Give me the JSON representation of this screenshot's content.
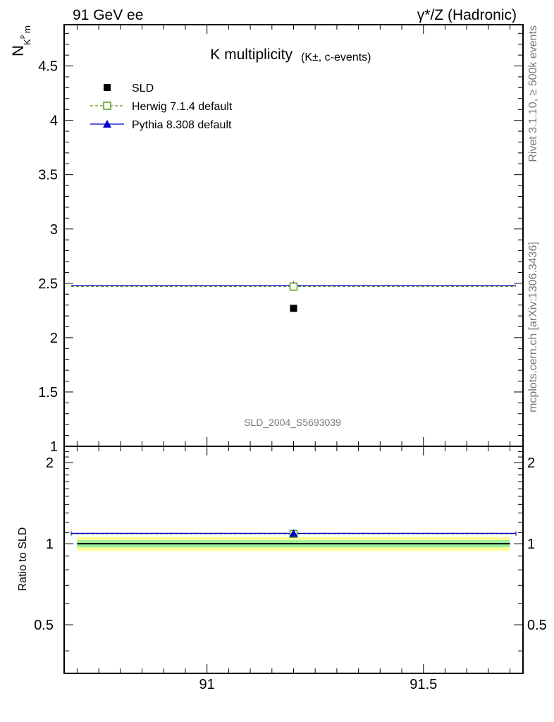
{
  "header": {
    "left": "91 GeV ee",
    "right": "γ*/Z (Hadronic)"
  },
  "side_labels": {
    "rivet": "Rivet 3.1.10, ≥ 500k events",
    "mcplots": "mcplots.cern.ch [arXiv:1306.3436]"
  },
  "chart_data": [
    {
      "type": "scatter",
      "panel": "main",
      "title": "K multiplicity",
      "title_note": "(K±, c-events)",
      "ylabel": "N_{K^{pm}}",
      "watermark": "SLD_2004_S5693039",
      "xlim": [
        90.67,
        91.73
      ],
      "ylim": [
        1.0,
        4.88
      ],
      "yticks": [
        1,
        1.5,
        2,
        2.5,
        3,
        3.5,
        4,
        4.5
      ],
      "ytick_labels": [
        "1",
        "1.5",
        "2",
        "2.5",
        "3",
        "3.5",
        "4",
        "4.5"
      ],
      "legend_position": "top-left",
      "series": [
        {
          "name": "SLD",
          "kind": "data",
          "marker": "square-filled",
          "color": "#000000",
          "x": [
            91.2
          ],
          "y": [
            2.27
          ]
        },
        {
          "name": "Herwig 7.1.4 default",
          "kind": "mc",
          "marker": "square-open",
          "line": "dashed",
          "color": "#5a9a1a",
          "x": [
            91.2
          ],
          "y": [
            2.47
          ],
          "x_range": [
            90.67,
            91.73
          ]
        },
        {
          "name": "Pythia 8.308 default",
          "kind": "mc",
          "marker": "triangle-filled",
          "line": "solid",
          "color": "#0000cc",
          "x": [
            91.2
          ],
          "y": [
            2.48
          ],
          "x_range": [
            90.67,
            91.73
          ]
        }
      ]
    },
    {
      "type": "scatter",
      "panel": "ratio",
      "ylabel": "Ratio to SLD",
      "xlim": [
        90.67,
        91.73
      ],
      "ylim": [
        0.33,
        2.3
      ],
      "xticks": [
        91,
        91.5
      ],
      "xtick_labels": [
        "91",
        "91.5"
      ],
      "yticks": [
        0.5,
        1,
        2
      ],
      "ytick_labels": [
        "0.5",
        "1",
        "2"
      ],
      "reference_bands": [
        {
          "level": "outer",
          "range": [
            0.94,
            1.06
          ],
          "color": "#ffff99"
        },
        {
          "level": "inner",
          "range": [
            0.97,
            1.03
          ],
          "color": "#99ee99"
        }
      ],
      "series": [
        {
          "name": "Herwig 7.1.4 default",
          "color": "#5a9a1a",
          "x": [
            91.2
          ],
          "y": [
            1.088
          ]
        },
        {
          "name": "Pythia 8.308 default",
          "color": "#0000cc",
          "x": [
            91.2
          ],
          "y": [
            1.093
          ]
        }
      ]
    }
  ]
}
